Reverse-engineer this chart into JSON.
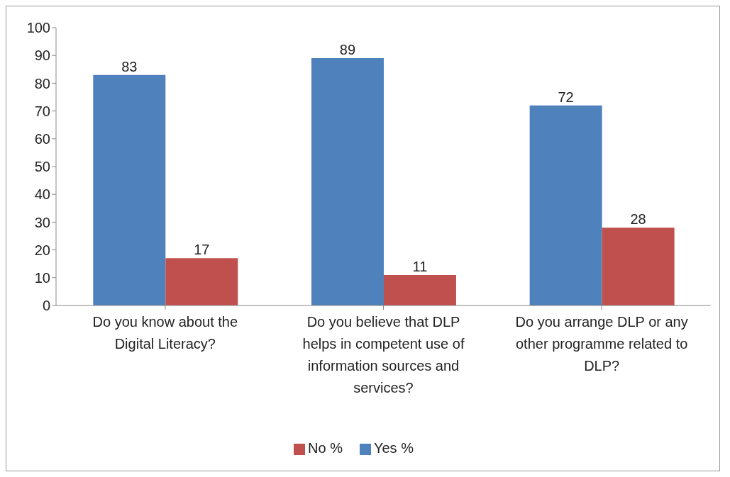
{
  "chart_data": {
    "type": "bar",
    "categories": [
      "Do you know about the Digital Literacy?",
      "Do you believe that DLP helps in competent use of information sources and services?",
      "Do you arrange DLP or any other programme related to DLP?"
    ],
    "series": [
      {
        "name": "Yes %",
        "color": "#4f81bd",
        "values": [
          83,
          89,
          72
        ]
      },
      {
        "name": "No %",
        "color": "#c0504d",
        "values": [
          17,
          11,
          28
        ]
      }
    ],
    "ylim": [
      0,
      100
    ],
    "yticks": [
      0,
      10,
      20,
      30,
      40,
      50,
      60,
      70,
      80,
      90,
      100
    ],
    "grid": false,
    "legend": "bottom",
    "data_labels": true
  }
}
